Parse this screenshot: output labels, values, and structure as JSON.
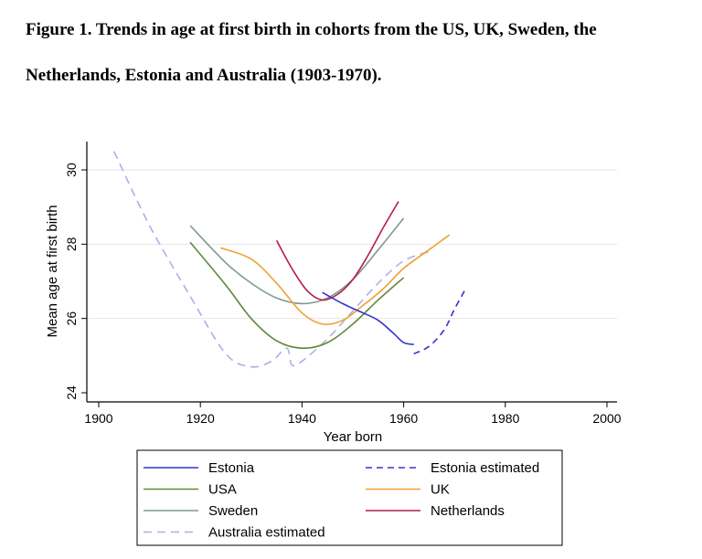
{
  "caption": {
    "line1": "Figure 1. Trends in age at first birth in cohorts from the US, UK, Sweden, the",
    "line2": "Netherlands, Estonia and Australia (1903-1970)."
  },
  "chart_data": {
    "type": "line",
    "title": "Trends in age at first birth in cohorts from the US, UK, Sweden, the Netherlands, Estonia and Australia (1903-1970)",
    "xlabel": "Year born",
    "ylabel": "Mean age at first birth",
    "xlim": [
      1900,
      2000
    ],
    "ylim": [
      24,
      30.6
    ],
    "xticks": [
      1900,
      1920,
      1940,
      1960,
      1980,
      2000
    ],
    "yticks": [
      24,
      26,
      28,
      30
    ],
    "grid": "horizontal",
    "legend_position": "bottom",
    "series": [
      {
        "name": "Estonia",
        "color": "#3333cc",
        "dash": false,
        "x": [
          1944,
          1948,
          1952,
          1955,
          1958,
          1960,
          1962
        ],
        "y": [
          26.7,
          26.4,
          26.15,
          25.95,
          25.6,
          25.35,
          25.3
        ]
      },
      {
        "name": "Estonia estimated",
        "color": "#3333cc",
        "dash": true,
        "x": [
          1962,
          1965,
          1968,
          1970,
          1972
        ],
        "y": [
          25.05,
          25.25,
          25.7,
          26.25,
          26.75
        ]
      },
      {
        "name": "USA",
        "color": "#5e8a3a",
        "dash": false,
        "x": [
          1918,
          1925,
          1930,
          1935,
          1940,
          1945,
          1950,
          1955,
          1960
        ],
        "y": [
          28.05,
          26.9,
          26.0,
          25.4,
          25.2,
          25.35,
          25.85,
          26.5,
          27.1
        ]
      },
      {
        "name": "UK",
        "color": "#f0a030",
        "dash": false,
        "x": [
          1924,
          1930,
          1935,
          1940,
          1944,
          1948,
          1952,
          1956,
          1960,
          1965,
          1969
        ],
        "y": [
          27.9,
          27.6,
          26.95,
          26.15,
          25.85,
          25.95,
          26.35,
          26.8,
          27.35,
          27.85,
          28.25
        ]
      },
      {
        "name": "Sweden",
        "color": "#7f9a8a",
        "dash": false,
        "x": [
          1918,
          1925,
          1930,
          1935,
          1940,
          1945,
          1950,
          1955,
          1960
        ],
        "y": [
          28.5,
          27.5,
          26.95,
          26.55,
          26.4,
          26.55,
          27.05,
          27.85,
          28.7
        ]
      },
      {
        "name": "Netherlands",
        "color": "#b5195a",
        "dash": false,
        "x": [
          1935,
          1938,
          1941,
          1944,
          1947,
          1950,
          1953,
          1956,
          1959
        ],
        "y": [
          28.1,
          27.35,
          26.75,
          26.5,
          26.65,
          27.05,
          27.7,
          28.45,
          29.15
        ]
      },
      {
        "name": "Australia estimated",
        "color": "#b0aee6",
        "dash": true,
        "x": [
          1903,
          1910,
          1918,
          1925,
          1930,
          1934,
          1937,
          1938,
          1940,
          1945,
          1950,
          1955,
          1960,
          1965
        ],
        "y": [
          30.5,
          28.5,
          26.6,
          25.05,
          24.7,
          24.85,
          25.2,
          24.75,
          24.85,
          25.45,
          26.2,
          26.95,
          27.55,
          27.8
        ]
      }
    ]
  }
}
